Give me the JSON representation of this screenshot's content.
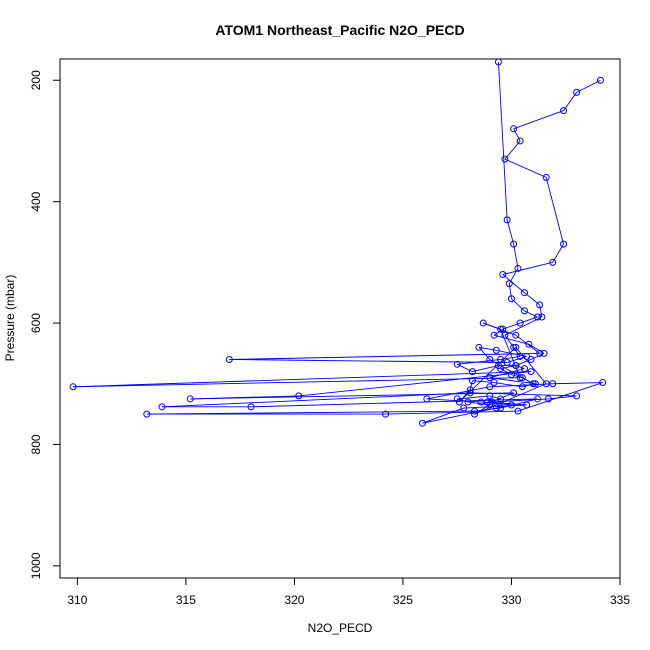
{
  "chart_data": {
    "type": "line",
    "title": "ATOM1 Northeast_Pacific N2O_PECD",
    "xlabel": "N2O_PECD",
    "ylabel": "Pressure (mbar)",
    "xlim": [
      309.2,
      335
    ],
    "ylim": [
      1020,
      165
    ],
    "y_reversed": true,
    "grid": false,
    "markers": "open-circle",
    "color": "#0000ff",
    "x_ticks": [
      310,
      315,
      320,
      325,
      330,
      335
    ],
    "x_tick_labels": [
      "310",
      "315",
      "320",
      "325",
      "330",
      "335"
    ],
    "y_ticks": [
      200,
      400,
      600,
      800,
      1000
    ],
    "y_tick_labels": [
      "200",
      "400",
      "600",
      "800",
      "1000"
    ],
    "series": [
      {
        "x": [
          329.4,
          329.8,
          330.1,
          330.3,
          329.9,
          330.0,
          330.6,
          331.2,
          330.4,
          329.6,
          329.2,
          330.8,
          331.5,
          330.9,
          330.2,
          329.5,
          330.0,
          330.5,
          331.0,
          329.0,
          328.5,
          329.3,
          330.7,
          329.8,
          317.0,
          331.3,
          330.2,
          328.7,
          329.5,
          330.4,
          309.8,
          330.9,
          320.2,
          315.2,
          330.1,
          329.1,
          331.7,
          333.0,
          328.1,
          313.9,
          318.0,
          331.2,
          329.5,
          328.3,
          313.2,
          324.2,
          330.3,
          334.2,
          331.9,
          329.0,
          326.1,
          328.6,
          330.0,
          329.3,
          325.9,
          327.8,
          330.7,
          328.9,
          329.5,
          329.0,
          327.5,
          328.0,
          329.0,
          328.3,
          331.6,
          330.2,
          327.6,
          328.1,
          328.2,
          329.2,
          330.5,
          331.1,
          329.0,
          330.6,
          330.2,
          329.4,
          328.2,
          327.5,
          329.5,
          330.4,
          330.1,
          329.7,
          331.4,
          331.3,
          330.6,
          329.6,
          331.9,
          332.4,
          331.6,
          329.7,
          330.4,
          330.1,
          332.4,
          333.0,
          334.1
        ],
        "y": [
          170,
          430,
          470,
          510,
          535,
          560,
          580,
          590,
          600,
          610,
          620,
          635,
          650,
          660,
          670,
          675,
          685,
          690,
          700,
          660,
          640,
          645,
          655,
          665,
          660,
          650,
          620,
          600,
          610,
          690,
          705,
          680,
          720,
          725,
          715,
          730,
          725,
          720,
          715,
          738,
          738,
          725,
          740,
          745,
          750,
          750,
          745,
          698,
          700,
          705,
          725,
          730,
          735,
          740,
          765,
          740,
          735,
          730,
          725,
          720,
          725,
          730,
          735,
          750,
          700,
          640,
          730,
          710,
          695,
          698,
          705,
          700,
          690,
          675,
          670,
          670,
          680,
          668,
          660,
          655,
          640,
          620,
          590,
          570,
          550,
          520,
          500,
          470,
          360,
          330,
          300,
          280,
          250,
          220,
          200
        ]
      }
    ]
  }
}
